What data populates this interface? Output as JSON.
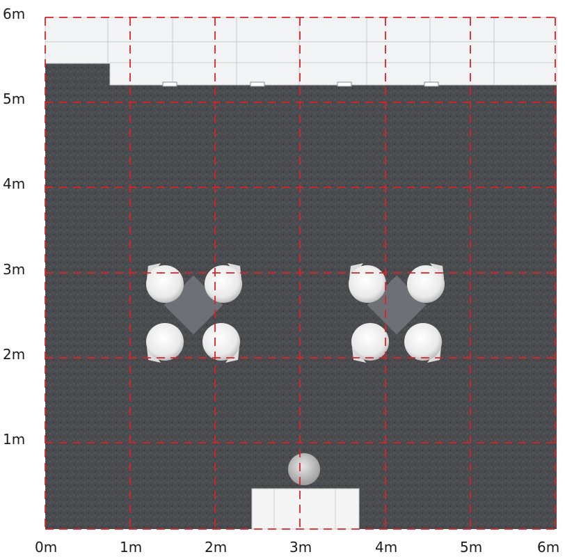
{
  "floor_plan": {
    "units": "m",
    "x_axis_labels": [
      "0m",
      "1m",
      "2m",
      "3m",
      "4m",
      "5m",
      "6m"
    ],
    "y_axis_labels": [
      "6m",
      "5m",
      "4m",
      "3m",
      "2m",
      "1m"
    ],
    "grid_spacing_m": 1,
    "width_m": 6,
    "depth_m": 6,
    "grid_color": "#d8232a",
    "floor_color": "#4b4c50",
    "wall_color": "#eef0f2"
  },
  "furniture": {
    "table_groups": [
      {
        "center_m": [
          1.97,
          2.6
        ],
        "chairs": 4
      },
      {
        "center_m": [
          4.35,
          2.6
        ],
        "chairs": 4
      }
    ],
    "stool": {
      "center_m": [
        3.07,
        0.52
      ]
    },
    "reception_counter": {
      "from_m": [
        2.4,
        0
      ],
      "to_m": [
        3.66,
        0.48
      ]
    }
  }
}
